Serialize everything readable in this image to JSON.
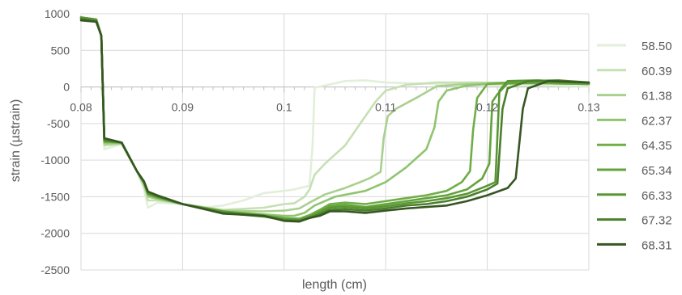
{
  "chart_data": {
    "type": "line",
    "xlabel": "length (cm)",
    "ylabel": "strain (µstrain)",
    "xlim": [
      0.08,
      0.13
    ],
    "ylim": [
      -2500,
      1000
    ],
    "x_ticks": [
      "0.08",
      "0.09",
      "0.1",
      "0.11",
      "0.12",
      "0.13"
    ],
    "y_ticks": [
      "1000",
      "500",
      "0",
      "-500",
      "-1000",
      "-1500",
      "-2000",
      "-2500"
    ],
    "grid": true,
    "legend": "right",
    "series": [
      {
        "name": "58.50",
        "color": "#e2efda",
        "x": [
          0.08,
          0.0815,
          0.082,
          0.0823,
          0.084,
          0.0855,
          0.0862,
          0.0866,
          0.0875,
          0.09,
          0.092,
          0.094,
          0.096,
          0.098,
          0.1,
          0.101,
          0.1025,
          0.1028,
          0.103,
          0.104,
          0.106,
          0.108,
          0.11,
          0.115,
          0.12,
          0.125,
          0.13
        ],
        "y": [
          950,
          920,
          700,
          -850,
          -780,
          -1150,
          -1400,
          -1650,
          -1580,
          -1600,
          -1650,
          -1620,
          -1550,
          -1450,
          -1420,
          -1400,
          -1350,
          -800,
          -10,
          20,
          80,
          90,
          60,
          40,
          30,
          20,
          10
        ]
      },
      {
        "name": "60.39",
        "color": "#c6e0b4",
        "x": [
          0.08,
          0.0815,
          0.082,
          0.0823,
          0.084,
          0.0855,
          0.0862,
          0.0866,
          0.0875,
          0.09,
          0.094,
          0.098,
          0.1,
          0.101,
          0.102,
          0.1025,
          0.103,
          0.104,
          0.106,
          0.107,
          0.108,
          0.109,
          0.11,
          0.112,
          0.115,
          0.12,
          0.125,
          0.13
        ],
        "y": [
          950,
          920,
          700,
          -800,
          -780,
          -1150,
          -1350,
          -1550,
          -1550,
          -1600,
          -1680,
          -1650,
          -1600,
          -1590,
          -1500,
          -1400,
          -1200,
          -1050,
          -800,
          -600,
          -400,
          -200,
          -50,
          30,
          60,
          60,
          50,
          40
        ]
      },
      {
        "name": "61.38",
        "color": "#a9d08e",
        "x": [
          0.08,
          0.0815,
          0.082,
          0.0823,
          0.084,
          0.0855,
          0.0862,
          0.0866,
          0.0875,
          0.09,
          0.094,
          0.098,
          0.1,
          0.1015,
          0.1025,
          0.104,
          0.106,
          0.1075,
          0.1085,
          0.1095,
          0.1098,
          0.1102,
          0.111,
          0.113,
          0.115,
          0.118,
          0.12,
          0.125,
          0.13
        ],
        "y": [
          950,
          920,
          700,
          -780,
          -770,
          -1150,
          -1330,
          -1500,
          -1530,
          -1600,
          -1690,
          -1700,
          -1690,
          -1660,
          -1580,
          -1470,
          -1380,
          -1300,
          -1240,
          -1160,
          -700,
          -400,
          -300,
          -150,
          10,
          40,
          50,
          50,
          40
        ]
      },
      {
        "name": "62.37",
        "color": "#8fc46f",
        "x": [
          0.08,
          0.0815,
          0.082,
          0.0823,
          0.084,
          0.0855,
          0.0862,
          0.0866,
          0.0875,
          0.09,
          0.094,
          0.098,
          0.1,
          0.101,
          0.102,
          0.103,
          0.105,
          0.108,
          0.11,
          0.112,
          0.114,
          0.1148,
          0.1152,
          0.116,
          0.118,
          0.12,
          0.125,
          0.13
        ],
        "y": [
          950,
          920,
          700,
          -760,
          -760,
          -1150,
          -1320,
          -1480,
          -1520,
          -1600,
          -1700,
          -1740,
          -1760,
          -1760,
          -1720,
          -1620,
          -1500,
          -1420,
          -1300,
          -1100,
          -850,
          -550,
          -200,
          -50,
          20,
          40,
          50,
          40
        ]
      },
      {
        "name": "64.35",
        "color": "#70ad47",
        "x": [
          0.08,
          0.0815,
          0.082,
          0.0823,
          0.084,
          0.0855,
          0.0862,
          0.0866,
          0.0875,
          0.09,
          0.094,
          0.098,
          0.1,
          0.1015,
          0.1025,
          0.1035,
          0.1045,
          0.106,
          0.108,
          0.11,
          0.112,
          0.114,
          0.116,
          0.1175,
          0.1183,
          0.1186,
          0.119,
          0.12,
          0.122,
          0.125,
          0.13
        ],
        "y": [
          950,
          920,
          700,
          -750,
          -760,
          -1150,
          -1310,
          -1470,
          -1510,
          -1600,
          -1700,
          -1750,
          -1790,
          -1800,
          -1750,
          -1680,
          -1600,
          -1580,
          -1600,
          -1560,
          -1520,
          -1480,
          -1420,
          -1300,
          -1150,
          -600,
          -150,
          40,
          60,
          50,
          40
        ]
      },
      {
        "name": "65.34",
        "color": "#63a33b",
        "x": [
          0.08,
          0.0815,
          0.082,
          0.0823,
          0.084,
          0.0855,
          0.0862,
          0.0866,
          0.0875,
          0.09,
          0.094,
          0.098,
          0.1,
          0.1015,
          0.1025,
          0.1035,
          0.1045,
          0.106,
          0.108,
          0.11,
          0.112,
          0.114,
          0.116,
          0.118,
          0.1195,
          0.1202,
          0.1205,
          0.121,
          0.122,
          0.125,
          0.13
        ],
        "y": [
          950,
          920,
          700,
          -740,
          -760,
          -1150,
          -1300,
          -1460,
          -1500,
          -1600,
          -1700,
          -1760,
          -1800,
          -1810,
          -1770,
          -1700,
          -1630,
          -1610,
          -1640,
          -1600,
          -1560,
          -1520,
          -1480,
          -1400,
          -1250,
          -1050,
          -200,
          -100,
          50,
          60,
          40
        ]
      },
      {
        "name": "66.33",
        "color": "#5a9634",
        "x": [
          0.08,
          0.0815,
          0.082,
          0.0823,
          0.084,
          0.0855,
          0.0862,
          0.0866,
          0.0875,
          0.09,
          0.094,
          0.098,
          0.1,
          0.1015,
          0.1025,
          0.1035,
          0.1045,
          0.106,
          0.108,
          0.11,
          0.112,
          0.114,
          0.116,
          0.118,
          0.12,
          0.1208,
          0.1212,
          0.122,
          0.125,
          0.13
        ],
        "y": [
          950,
          920,
          700,
          -730,
          -760,
          -1150,
          -1300,
          -1450,
          -1500,
          -1600,
          -1710,
          -1760,
          -1810,
          -1820,
          -1780,
          -1720,
          -1650,
          -1640,
          -1660,
          -1630,
          -1590,
          -1560,
          -1520,
          -1460,
          -1350,
          -1300,
          -50,
          80,
          90,
          50
        ]
      },
      {
        "name": "67.32",
        "color": "#4a7f2c",
        "x": [
          0.08,
          0.0815,
          0.082,
          0.0823,
          0.084,
          0.0855,
          0.0862,
          0.0866,
          0.0875,
          0.09,
          0.094,
          0.098,
          0.1,
          0.1015,
          0.1025,
          0.1035,
          0.1045,
          0.106,
          0.108,
          0.11,
          0.112,
          0.114,
          0.116,
          0.118,
          0.12,
          0.121,
          0.1215,
          0.122,
          0.124,
          0.127,
          0.13
        ],
        "y": [
          930,
          900,
          700,
          -720,
          -760,
          -1150,
          -1290,
          -1440,
          -1490,
          -1600,
          -1720,
          -1770,
          -1820,
          -1830,
          -1790,
          -1740,
          -1680,
          -1670,
          -1690,
          -1660,
          -1620,
          -1600,
          -1560,
          -1500,
          -1400,
          -1320,
          -300,
          -20,
          80,
          90,
          60
        ]
      },
      {
        "name": "68.31",
        "color": "#375623",
        "x": [
          0.08,
          0.0815,
          0.082,
          0.0823,
          0.084,
          0.0855,
          0.0862,
          0.0866,
          0.0875,
          0.09,
          0.094,
          0.098,
          0.1,
          0.1015,
          0.1025,
          0.1035,
          0.1045,
          0.106,
          0.108,
          0.11,
          0.112,
          0.114,
          0.116,
          0.118,
          0.12,
          0.122,
          0.1228,
          0.1235,
          0.124,
          0.126,
          0.128,
          0.13
        ],
        "y": [
          910,
          890,
          700,
          -700,
          -760,
          -1150,
          -1290,
          -1430,
          -1480,
          -1600,
          -1730,
          -1760,
          -1830,
          -1840,
          -1790,
          -1760,
          -1700,
          -1700,
          -1720,
          -1690,
          -1660,
          -1640,
          -1620,
          -1560,
          -1480,
          -1380,
          -1250,
          -300,
          -20,
          80,
          70,
          60
        ]
      }
    ]
  }
}
